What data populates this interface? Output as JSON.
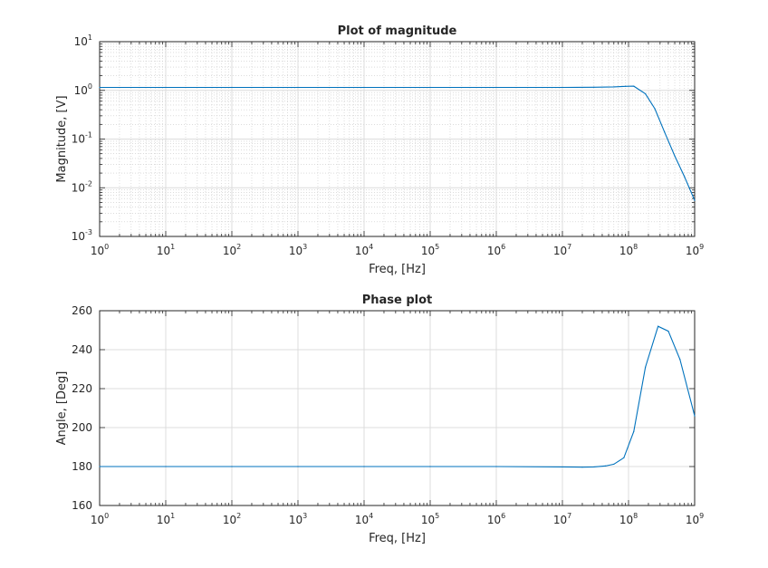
{
  "chart_data": [
    {
      "type": "line",
      "title": "Plot of magnitude",
      "xlabel": "Freq, [Hz]",
      "ylabel": "Magnitude, [V]",
      "xscale": "log",
      "yscale": "log",
      "xlim": [
        1,
        1000000000
      ],
      "ylim": [
        0.001,
        10
      ],
      "grid": "major and minor",
      "x_ticks": [
        {
          "base": "10",
          "exp": "0"
        },
        {
          "base": "10",
          "exp": "1"
        },
        {
          "base": "10",
          "exp": "2"
        },
        {
          "base": "10",
          "exp": "3"
        },
        {
          "base": "10",
          "exp": "4"
        },
        {
          "base": "10",
          "exp": "5"
        },
        {
          "base": "10",
          "exp": "6"
        },
        {
          "base": "10",
          "exp": "7"
        },
        {
          "base": "10",
          "exp": "8"
        },
        {
          "base": "10",
          "exp": "9"
        }
      ],
      "y_ticks": [
        {
          "base": "10",
          "exp": "-3"
        },
        {
          "base": "10",
          "exp": "-2"
        },
        {
          "base": "10",
          "exp": "-1"
        },
        {
          "base": "10",
          "exp": "0"
        },
        {
          "base": "10",
          "exp": "1"
        }
      ],
      "line_color": "#0072BD",
      "series": [
        {
          "x": [
            1,
            10,
            100,
            1000,
            10000,
            100000,
            1000000,
            10000000,
            30000000,
            60000000,
            90000000,
            120000000,
            180000000,
            250000000,
            350000000,
            500000000,
            700000000,
            1000000000
          ],
          "y": [
            1.15,
            1.15,
            1.15,
            1.15,
            1.15,
            1.15,
            1.15,
            1.15,
            1.16,
            1.18,
            1.21,
            1.22,
            0.85,
            0.42,
            0.14,
            0.045,
            0.017,
            0.0055
          ]
        }
      ]
    },
    {
      "type": "line",
      "title": "Phase plot",
      "xlabel": "Freq, [Hz]",
      "ylabel": "Angle, [Deg]",
      "xscale": "log",
      "yscale": "linear",
      "xlim": [
        1,
        1000000000
      ],
      "ylim": [
        160,
        260
      ],
      "grid": "major",
      "x_ticks": [
        {
          "base": "10",
          "exp": "0"
        },
        {
          "base": "10",
          "exp": "1"
        },
        {
          "base": "10",
          "exp": "2"
        },
        {
          "base": "10",
          "exp": "3"
        },
        {
          "base": "10",
          "exp": "4"
        },
        {
          "base": "10",
          "exp": "5"
        },
        {
          "base": "10",
          "exp": "6"
        },
        {
          "base": "10",
          "exp": "7"
        },
        {
          "base": "10",
          "exp": "8"
        },
        {
          "base": "10",
          "exp": "9"
        }
      ],
      "y_ticks": [
        "160",
        "180",
        "200",
        "220",
        "240",
        "260"
      ],
      "line_color": "#0072BD",
      "series": [
        {
          "x": [
            1,
            10,
            100,
            1000,
            10000,
            100000,
            1000000,
            10000000,
            20000000,
            30000000,
            45000000,
            60000000,
            85000000,
            120000000,
            180000000,
            280000000,
            400000000,
            600000000,
            1000000000
          ],
          "y": [
            180,
            180,
            180,
            180,
            180,
            180,
            180,
            179.8,
            179.7,
            179.8,
            180.3,
            181.2,
            184.5,
            198,
            231,
            252,
            249.5,
            235,
            206
          ]
        }
      ]
    }
  ]
}
